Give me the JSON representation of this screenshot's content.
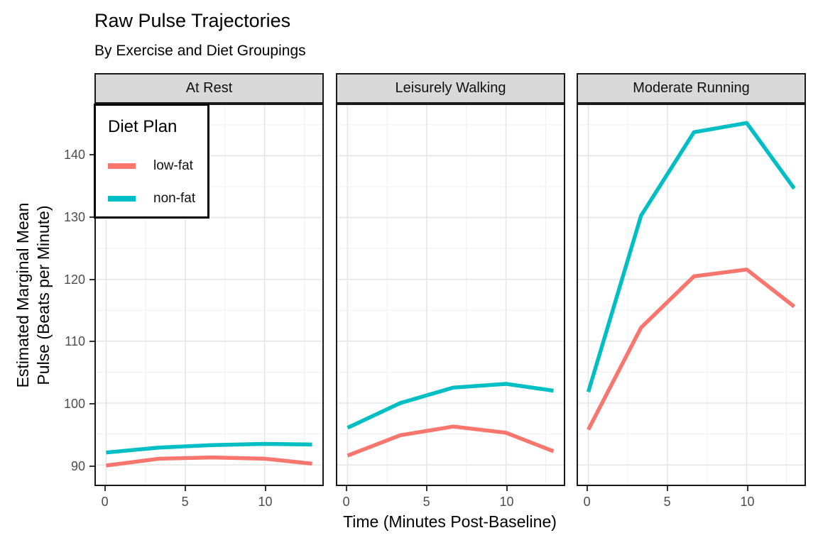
{
  "title": "Raw Pulse Trajectories",
  "subtitle": "By Exercise and Diet Groupings",
  "axes": {
    "x_title": "Time (Minutes Post-Baseline)",
    "y_title_line1": "Estimated Marginal Mean",
    "y_title_line2": "Pulse (Beats per Minute)"
  },
  "legend": {
    "title": "Diet Plan",
    "entries": [
      {
        "label": "low-fat",
        "color": "#F8766D"
      },
      {
        "label": "non-fat",
        "color": "#00BFC4"
      }
    ]
  },
  "colors": {
    "low_fat": "#F8766D",
    "non_fat": "#00BFC4",
    "strip_fill": "#d9d9d9",
    "panel_border": "#1a1a1a",
    "grid_major": "#e5e5e5",
    "grid_minor": "#f2f2f2",
    "tick_text": "#4d4d4d"
  },
  "chart_data": {
    "type": "line",
    "title": "Raw Pulse Trajectories",
    "subtitle": "By Exercise and Diet Groupings",
    "xlabel": "Time (Minutes Post-Baseline)",
    "ylabel": "Estimated Marginal Mean Pulse (Beats per Minute)",
    "legend_title": "Diet Plan",
    "legend_position": "inside top-left of first facet",
    "grid": true,
    "x": [
      0,
      3.33,
      6.67,
      10,
      13
    ],
    "xlim": [
      -0.65,
      13.65
    ],
    "ylim": [
      86.8,
      148.2
    ],
    "x_major_ticks": [
      0,
      5,
      10
    ],
    "x_minor_gridlines": [
      2.5,
      7.5,
      12.5
    ],
    "y_major_ticks": [
      90,
      100,
      110,
      120,
      130,
      140
    ],
    "y_minor_gridlines": [
      95,
      105,
      115,
      125,
      135,
      145
    ],
    "facets": [
      {
        "label": "At Rest",
        "series": [
          {
            "name": "low-fat",
            "color": "#F8766D",
            "values": [
              89.9,
              91.0,
              91.2,
              91.0,
              90.2
            ]
          },
          {
            "name": "non-fat",
            "color": "#00BFC4",
            "values": [
              92.0,
              92.8,
              93.2,
              93.4,
              93.3
            ]
          }
        ]
      },
      {
        "label": "Leisurely Walking",
        "series": [
          {
            "name": "low-fat",
            "color": "#F8766D",
            "values": [
              91.5,
              94.8,
              96.2,
              95.2,
              92.2
            ]
          },
          {
            "name": "non-fat",
            "color": "#00BFC4",
            "values": [
              96.0,
              100.0,
              102.5,
              103.1,
              102.0
            ]
          }
        ]
      },
      {
        "label": "Moderate Running",
        "series": [
          {
            "name": "low-fat",
            "color": "#F8766D",
            "values": [
              95.7,
              112.2,
              120.5,
              121.6,
              115.6
            ]
          },
          {
            "name": "non-fat",
            "color": "#00BFC4",
            "values": [
              101.8,
              130.3,
              143.8,
              145.3,
              134.7
            ]
          }
        ]
      }
    ]
  }
}
